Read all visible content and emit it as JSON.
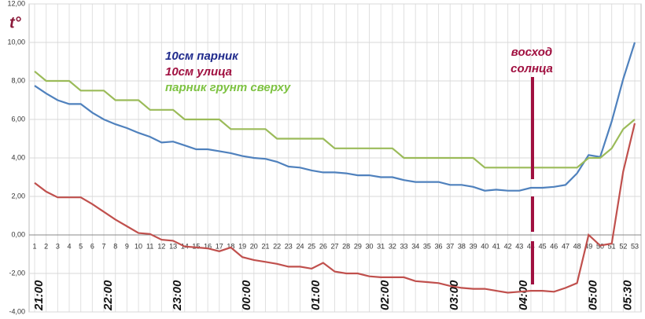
{
  "chart_data": {
    "type": "line",
    "y_title": "t°",
    "annotation_lines": [
      "восход",
      "солнца"
    ],
    "annotation_color": "#a01040",
    "categories": [
      1,
      2,
      3,
      4,
      5,
      6,
      7,
      8,
      9,
      10,
      11,
      12,
      13,
      14,
      15,
      16,
      17,
      18,
      19,
      20,
      21,
      22,
      23,
      24,
      25,
      26,
      27,
      28,
      29,
      30,
      31,
      32,
      33,
      34,
      35,
      36,
      37,
      38,
      39,
      40,
      41,
      42,
      43,
      44,
      45,
      46,
      47,
      48,
      49,
      50,
      51,
      52,
      53
    ],
    "x_time_labels": [
      "21:00",
      null,
      null,
      null,
      null,
      null,
      "22:00",
      null,
      null,
      null,
      null,
      null,
      "23:00",
      null,
      null,
      null,
      null,
      null,
      "00:00",
      null,
      null,
      null,
      null,
      null,
      "01:00",
      null,
      null,
      null,
      null,
      null,
      "02:00",
      null,
      null,
      null,
      null,
      null,
      "03:00",
      null,
      null,
      null,
      null,
      null,
      "04:00",
      null,
      null,
      null,
      null,
      null,
      "05:00",
      null,
      null,
      "05:30",
      null
    ],
    "series": [
      {
        "name": "10см парник",
        "color": "#4f81bd",
        "legend_color": "#1f2a8c",
        "values": [
          7.75,
          7.35,
          7.0,
          6.8,
          6.8,
          6.35,
          6.0,
          5.75,
          5.55,
          5.3,
          5.1,
          4.8,
          4.85,
          4.65,
          4.45,
          4.45,
          4.35,
          4.25,
          4.1,
          4.0,
          3.95,
          3.8,
          3.55,
          3.5,
          3.35,
          3.25,
          3.25,
          3.2,
          3.1,
          3.1,
          3.0,
          3.0,
          2.85,
          2.75,
          2.75,
          2.75,
          2.6,
          2.6,
          2.5,
          2.3,
          2.35,
          2.3,
          2.3,
          2.45,
          2.45,
          2.5,
          2.6,
          3.2,
          4.15,
          4.05,
          5.9,
          8.1,
          10.0
        ]
      },
      {
        "name": "10см улица",
        "color": "#c0504d",
        "legend_color": "#a01040",
        "values": [
          2.7,
          2.25,
          1.95,
          1.95,
          1.95,
          1.6,
          1.2,
          0.8,
          0.45,
          0.1,
          0.05,
          -0.25,
          -0.3,
          -0.6,
          -0.65,
          -0.7,
          -0.85,
          -0.65,
          -1.15,
          -1.3,
          -1.4,
          -1.5,
          -1.65,
          -1.65,
          -1.75,
          -1.45,
          -1.9,
          -2.0,
          -2.0,
          -2.15,
          -2.2,
          -2.2,
          -2.2,
          -2.4,
          -2.45,
          -2.5,
          -2.65,
          -2.75,
          -2.8,
          -2.8,
          -2.9,
          -3.0,
          -2.95,
          -2.9,
          -2.9,
          -2.95,
          -2.75,
          -2.5,
          0.0,
          -0.55,
          -0.45,
          3.3,
          5.8
        ]
      },
      {
        "name": "парник грунт сверху",
        "color": "#9bbb59",
        "legend_color": "#7dc241",
        "values": [
          8.5,
          8.0,
          8.0,
          8.0,
          7.5,
          7.5,
          7.5,
          7.0,
          7.0,
          7.0,
          6.5,
          6.5,
          6.5,
          6.0,
          6.0,
          6.0,
          6.0,
          5.5,
          5.5,
          5.5,
          5.5,
          5.0,
          5.0,
          5.0,
          5.0,
          5.0,
          4.5,
          4.5,
          4.5,
          4.5,
          4.5,
          4.5,
          4.0,
          4.0,
          4.0,
          4.0,
          4.0,
          4.0,
          4.0,
          3.5,
          3.5,
          3.5,
          3.5,
          3.5,
          3.5,
          3.5,
          3.5,
          3.5,
          4.0,
          4.0,
          4.5,
          5.5,
          6.0
        ]
      }
    ],
    "ylim": [
      -4,
      12
    ],
    "yticks": [
      {
        "value": -4,
        "label": "-4,00"
      },
      {
        "value": -2,
        "label": "-2,00"
      },
      {
        "value": 0,
        "label": "0,00"
      },
      {
        "value": 2,
        "label": "2,00"
      },
      {
        "value": 4,
        "label": "4,00"
      },
      {
        "value": 6,
        "label": "6,00"
      },
      {
        "value": 8,
        "label": "8,00"
      },
      {
        "value": 10,
        "label": "10,00"
      },
      {
        "value": 12,
        "label": "12,00"
      }
    ],
    "grid": true
  }
}
